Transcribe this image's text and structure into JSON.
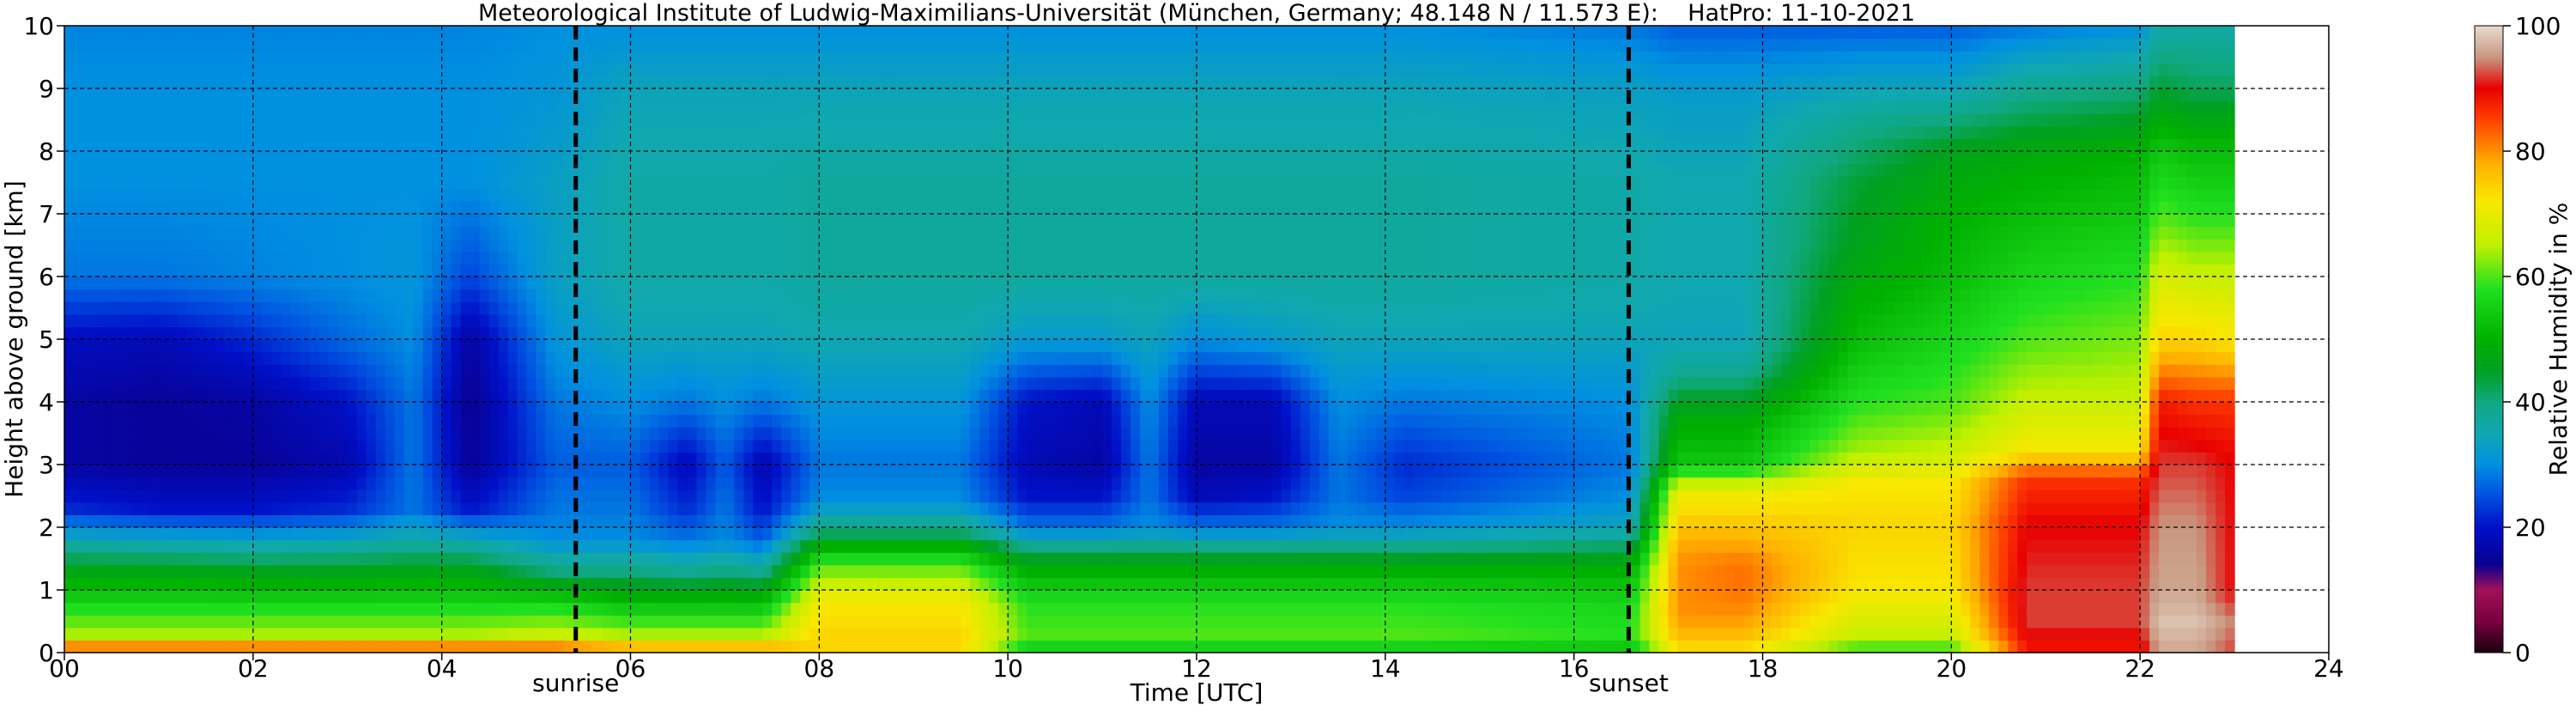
{
  "chart_data": {
    "type": "heatmap",
    "title": "Meteorological Institute of Ludwig-Maximilians-Universität (München, Germany; 48.148 N / 11.573 E):    HatPro: 11-10-2021",
    "xlabel": "Time [UTC]",
    "ylabel": "Height above ground [km]",
    "colorbar_label": "Relative Humidity in %",
    "xlim": [
      0,
      24
    ],
    "ylim": [
      0,
      10
    ],
    "clim": [
      0,
      100
    ],
    "x_ticks": [
      0,
      2,
      4,
      6,
      8,
      10,
      12,
      14,
      16,
      18,
      20,
      22,
      24
    ],
    "x_tick_labels": [
      "00",
      "02",
      "04",
      "06",
      "08",
      "10",
      "12",
      "14",
      "16",
      "18",
      "20",
      "22",
      "24"
    ],
    "y_ticks": [
      0,
      1,
      2,
      3,
      4,
      5,
      6,
      7,
      8,
      9,
      10
    ],
    "y_tick_labels": [
      "0",
      "1",
      "2",
      "3",
      "4",
      "5",
      "6",
      "7",
      "8",
      "9",
      "10"
    ],
    "colorbar_ticks": [
      0,
      20,
      40,
      60,
      80,
      100
    ],
    "colorbar_tick_labels": [
      "0",
      "20",
      "40",
      "60",
      "80",
      "100"
    ],
    "grid": true,
    "data_end_time": 23.0,
    "vlines": [
      {
        "x": 5.42,
        "label": "sunrise",
        "style": "dashed"
      },
      {
        "x": 16.58,
        "label": "sunset",
        "style": "dashed"
      }
    ],
    "colormap": [
      {
        "v": 0,
        "color": "#1a0010"
      },
      {
        "v": 5,
        "color": "#7a0040"
      },
      {
        "v": 10,
        "color": "#a0105a"
      },
      {
        "v": 14,
        "color": "#0a0090"
      },
      {
        "v": 20,
        "color": "#0010c8"
      },
      {
        "v": 25,
        "color": "#0050e0"
      },
      {
        "v": 30,
        "color": "#0090e0"
      },
      {
        "v": 35,
        "color": "#10a8b0"
      },
      {
        "v": 40,
        "color": "#10a880"
      },
      {
        "v": 45,
        "color": "#00a020"
      },
      {
        "v": 50,
        "color": "#00b000"
      },
      {
        "v": 58,
        "color": "#20e020"
      },
      {
        "v": 65,
        "color": "#c0f000"
      },
      {
        "v": 72,
        "color": "#f8e800"
      },
      {
        "v": 78,
        "color": "#ffb000"
      },
      {
        "v": 85,
        "color": "#ff4000"
      },
      {
        "v": 90,
        "color": "#e80000"
      },
      {
        "v": 95,
        "color": "#c89880"
      },
      {
        "v": 100,
        "color": "#e8dcd0"
      }
    ],
    "profiles": [
      {
        "t": 0.0,
        "rh": {
          "0.0": 90,
          "0.1": 80,
          "0.3": 64,
          "0.8": 56,
          "1.3": 47,
          "1.8": 35,
          "2.3": 22,
          "3.0": 16,
          "4.0": 16,
          "5.0": 19,
          "6.0": 28,
          "7.5": 30,
          "9.0": 30,
          "10.0": 29
        }
      },
      {
        "t": 1.0,
        "rh": {
          "0.0": 90,
          "0.1": 80,
          "0.3": 64,
          "0.8": 56,
          "1.3": 47,
          "1.8": 34,
          "2.3": 20,
          "3.0": 15,
          "4.0": 15,
          "5.0": 18,
          "6.0": 28,
          "7.5": 30,
          "9.0": 30,
          "10.0": 29
        }
      },
      {
        "t": 2.0,
        "rh": {
          "0.0": 90,
          "0.1": 80,
          "0.3": 64,
          "0.8": 56,
          "1.3": 46,
          "1.8": 33,
          "2.3": 20,
          "3.0": 15,
          "4.0": 16,
          "5.0": 22,
          "6.0": 29,
          "7.5": 30,
          "9.0": 30,
          "10.0": 29
        }
      },
      {
        "t": 3.0,
        "rh": {
          "0.0": 90,
          "0.1": 80,
          "0.3": 64,
          "0.8": 56,
          "1.3": 46,
          "1.8": 34,
          "2.3": 22,
          "3.0": 17,
          "4.0": 20,
          "5.0": 27,
          "6.0": 30,
          "7.5": 30,
          "9.0": 30,
          "10.0": 29
        }
      },
      {
        "t": 3.7,
        "rh": {
          "0.0": 90,
          "0.1": 80,
          "0.3": 64,
          "0.8": 56,
          "1.3": 47,
          "1.8": 36,
          "2.3": 28,
          "3.0": 28,
          "4.0": 28,
          "5.0": 30,
          "6.0": 31,
          "7.5": 30,
          "9.0": 30,
          "10.0": 29
        }
      },
      {
        "t": 4.3,
        "rh": {
          "0.0": 90,
          "0.1": 80,
          "0.3": 64,
          "0.8": 56,
          "1.3": 47,
          "1.8": 35,
          "2.3": 20,
          "3.0": 15,
          "4.0": 14,
          "5.0": 16,
          "6.0": 24,
          "7.5": 30,
          "9.0": 30,
          "10.0": 29
        }
      },
      {
        "t": 5.2,
        "rh": {
          "0.0": 90,
          "0.1": 80,
          "0.3": 66,
          "0.8": 56,
          "1.3": 40,
          "1.8": 30,
          "2.3": 28,
          "3.0": 26,
          "4.0": 28,
          "5.0": 31,
          "6.0": 33,
          "7.5": 33,
          "9.0": 31,
          "10.0": 30
        }
      },
      {
        "t": 6.0,
        "rh": {
          "0.0": 86,
          "0.1": 76,
          "0.3": 64,
          "0.8": 52,
          "1.3": 40,
          "1.8": 30,
          "2.3": 28,
          "3.0": 26,
          "4.0": 30,
          "5.0": 34,
          "6.0": 36,
          "7.5": 36,
          "9.0": 34,
          "10.0": 30
        }
      },
      {
        "t": 6.6,
        "rh": {
          "0.0": 86,
          "0.1": 76,
          "0.3": 64,
          "0.8": 52,
          "1.3": 38,
          "1.8": 28,
          "2.3": 22,
          "3.0": 18,
          "4.0": 28,
          "5.0": 34,
          "6.0": 36,
          "7.5": 36,
          "9.0": 34,
          "10.0": 30
        }
      },
      {
        "t": 7.0,
        "rh": {
          "0.0": 86,
          "0.1": 76,
          "0.3": 64,
          "0.8": 52,
          "1.3": 40,
          "1.8": 30,
          "2.3": 28,
          "3.0": 26,
          "4.0": 30,
          "5.0": 34,
          "6.0": 36,
          "7.5": 36,
          "9.0": 34,
          "10.0": 30
        }
      },
      {
        "t": 7.4,
        "rh": {
          "0.0": 86,
          "0.1": 76,
          "0.3": 64,
          "0.8": 52,
          "1.3": 38,
          "1.8": 26,
          "2.3": 20,
          "3.0": 17,
          "4.0": 28,
          "5.0": 34,
          "6.0": 36,
          "7.5": 36,
          "9.0": 34,
          "10.0": 30
        }
      },
      {
        "t": 8.0,
        "rh": {
          "0.0": 74,
          "0.1": 74,
          "0.3": 74,
          "0.8": 72,
          "1.3": 62,
          "1.6": 54,
          "1.9": 42,
          "2.4": 30,
          "3.0": 28,
          "4.0": 31,
          "5.0": 35,
          "6.0": 37,
          "7.5": 37,
          "9.0": 34,
          "10.0": 30
        }
      },
      {
        "t": 9.5,
        "rh": {
          "0.0": 74,
          "0.1": 74,
          "0.3": 74,
          "0.8": 72,
          "1.3": 62,
          "1.6": 54,
          "1.9": 42,
          "2.4": 30,
          "3.0": 28,
          "4.0": 31,
          "5.0": 35,
          "6.0": 37,
          "7.5": 37,
          "9.0": 34,
          "10.0": 30
        }
      },
      {
        "t": 10.2,
        "rh": {
          "0.0": 52,
          "0.1": 56,
          "0.3": 60,
          "0.8": 58,
          "1.3": 50,
          "1.6": 42,
          "2.0": 28,
          "2.5": 20,
          "3.0": 18,
          "4.0": 20,
          "5.0": 32,
          "6.0": 37,
          "7.5": 37,
          "9.0": 34,
          "10.0": 30
        }
      },
      {
        "t": 11.0,
        "rh": {
          "0.0": 52,
          "0.1": 56,
          "0.3": 60,
          "0.8": 58,
          "1.3": 50,
          "1.6": 42,
          "2.0": 28,
          "2.5": 20,
          "3.0": 16,
          "4.0": 18,
          "5.0": 32,
          "6.0": 37,
          "7.5": 37,
          "9.0": 34,
          "10.0": 30
        }
      },
      {
        "t": 11.5,
        "rh": {
          "0.0": 52,
          "0.1": 56,
          "0.3": 60,
          "0.8": 58,
          "1.3": 50,
          "1.6": 42,
          "2.0": 30,
          "2.5": 28,
          "3.0": 28,
          "4.0": 30,
          "5.0": 34,
          "6.0": 37,
          "7.5": 37,
          "9.0": 34,
          "10.0": 30
        }
      },
      {
        "t": 12.0,
        "rh": {
          "0.0": 52,
          "0.1": 56,
          "0.3": 60,
          "0.8": 58,
          "1.3": 50,
          "1.6": 42,
          "2.0": 28,
          "2.5": 18,
          "3.0": 16,
          "4.0": 18,
          "5.0": 30,
          "6.0": 37,
          "7.5": 37,
          "9.0": 34,
          "10.0": 30
        }
      },
      {
        "t": 12.8,
        "rh": {
          "0.0": 52,
          "0.1": 56,
          "0.3": 60,
          "0.8": 58,
          "1.3": 50,
          "1.6": 42,
          "2.0": 28,
          "2.5": 20,
          "3.0": 16,
          "4.0": 18,
          "5.0": 32,
          "6.0": 37,
          "7.5": 37,
          "9.0": 34,
          "10.0": 30
        }
      },
      {
        "t": 13.5,
        "rh": {
          "0.0": 52,
          "0.1": 56,
          "0.3": 60,
          "0.8": 58,
          "1.3": 50,
          "1.6": 42,
          "2.0": 30,
          "2.5": 28,
          "3.0": 28,
          "4.0": 30,
          "5.0": 34,
          "6.0": 37,
          "7.5": 37,
          "9.0": 34,
          "10.0": 30
        }
      },
      {
        "t": 14.2,
        "rh": {
          "0.0": 52,
          "0.1": 56,
          "0.3": 60,
          "0.8": 58,
          "1.3": 50,
          "1.6": 42,
          "2.0": 30,
          "2.5": 24,
          "3.0": 22,
          "4.0": 28,
          "5.0": 34,
          "6.0": 37,
          "7.5": 37,
          "9.0": 34,
          "10.0": 30
        }
      },
      {
        "t": 16.6,
        "rh": {
          "0.0": 50,
          "0.1": 54,
          "0.3": 58,
          "0.8": 56,
          "1.3": 50,
          "1.6": 44,
          "2.0": 34,
          "2.5": 30,
          "3.0": 28,
          "4.0": 30,
          "5.0": 34,
          "6.0": 36,
          "7.5": 36,
          "9.0": 33,
          "10.0": 28
        }
      },
      {
        "t": 17.1,
        "rh": {
          "0.0": 72,
          "0.2": 76,
          "0.6": 80,
          "1.0": 80,
          "1.4": 80,
          "1.8": 78,
          "2.6": 70,
          "3.0": 54,
          "3.8": 48,
          "4.5": 38,
          "5.0": 34,
          "6.0": 35,
          "7.5": 35,
          "9.0": 32,
          "10.0": 26
        }
      },
      {
        "t": 17.8,
        "rh": {
          "0.0": 72,
          "0.2": 76,
          "0.6": 80,
          "1.0": 82,
          "1.4": 82,
          "1.8": 78,
          "2.6": 70,
          "3.0": 54,
          "3.8": 48,
          "4.5": 38,
          "5.0": 34,
          "6.0": 35,
          "7.5": 35,
          "9.0": 32,
          "10.0": 26
        }
      },
      {
        "t": 19.0,
        "rh": {
          "0.0": 58,
          "0.3": 66,
          "1.0": 72,
          "2.0": 74,
          "2.7": 72,
          "3.2": 64,
          "4.0": 58,
          "5.0": 52,
          "6.5": 46,
          "7.5": 44,
          "8.5": 38,
          "9.5": 30,
          "10.0": 26
        }
      },
      {
        "t": 20.0,
        "rh": {
          "0.0": 58,
          "0.3": 66,
          "1.0": 72,
          "2.0": 74,
          "2.7": 72,
          "3.2": 66,
          "4.0": 60,
          "5.0": 56,
          "6.0": 52,
          "7.0": 50,
          "8.0": 46,
          "9.0": 34,
          "10.0": 26
        }
      },
      {
        "t": 20.8,
        "rh": {
          "0.0": 88,
          "0.5": 92,
          "1.0": 92,
          "2.0": 90,
          "2.8": 86,
          "3.2": 72,
          "4.0": 66,
          "5.0": 60,
          "6.0": 56,
          "7.0": 52,
          "8.0": 48,
          "9.0": 38,
          "10.0": 28
        }
      },
      {
        "t": 22.0,
        "rh": {
          "0.0": 88,
          "0.5": 92,
          "1.0": 92,
          "2.0": 90,
          "2.8": 86,
          "3.2": 72,
          "4.0": 66,
          "5.0": 62,
          "6.0": 58,
          "7.0": 54,
          "8.0": 50,
          "9.0": 40,
          "10.0": 30
        }
      },
      {
        "t": 22.2,
        "rh": {
          "0.0": 96,
          "0.5": 98,
          "1.0": 96,
          "2.0": 95,
          "3.0": 92,
          "4.0": 88,
          "5.0": 74,
          "6.0": 68,
          "7.0": 60,
          "8.0": 54,
          "9.0": 44,
          "10.0": 36
        }
      },
      {
        "t": 22.6,
        "rh": {
          "0.0": 96,
          "0.5": 98,
          "1.0": 96,
          "2.0": 95,
          "3.0": 92,
          "4.0": 86,
          "5.0": 74,
          "6.0": 66,
          "7.0": 58,
          "8.0": 52,
          "9.0": 42,
          "10.0": 36
        }
      },
      {
        "t": 23.0,
        "rh": {
          "0.0": 92,
          "0.5": 94,
          "1.0": 90,
          "2.0": 90,
          "3.0": 90,
          "4.0": 86,
          "5.0": 72,
          "6.0": 66,
          "7.0": 58,
          "8.0": 52,
          "9.0": 42,
          "10.0": 36
        }
      }
    ]
  }
}
